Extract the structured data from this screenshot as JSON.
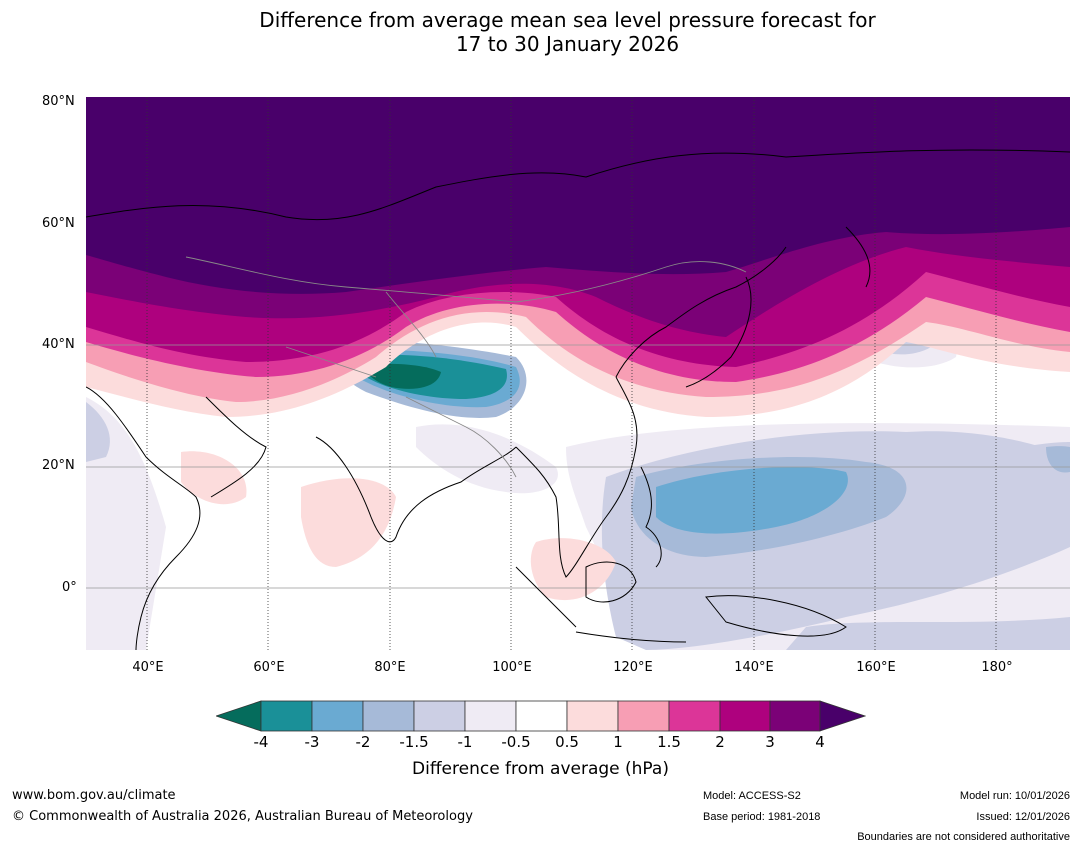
{
  "title": {
    "line1": "Difference from average mean sea level pressure forecast for",
    "line2": "17 to 30 January 2026"
  },
  "axes": {
    "lat_labels": [
      "80°N",
      "60°N",
      "40°N",
      "20°N",
      "0°"
    ],
    "lon_labels": [
      "40°E",
      "60°E",
      "80°E",
      "100°E",
      "120°E",
      "140°E",
      "160°E",
      "180°"
    ]
  },
  "colorbar": {
    "label": "Difference from average (hPa)",
    "ticks": [
      "-4",
      "-3",
      "-2",
      "-1.5",
      "-1",
      "-0.5",
      "0.5",
      "1",
      "1.5",
      "2",
      "3",
      "4"
    ],
    "colors": {
      "lt_-4": "#056c5c",
      "-4_-3": "#1a9098",
      "-3_-2": "#6aaad2",
      "-2_-1.5": "#a6bad8",
      "-1.5_-1": "#cccfe4",
      "-1_-0.5": "#efebf4",
      "-0.5_0.5": "#ffffff",
      "0.5_1": "#fcdcdc",
      "1_1.5": "#f79eb4",
      "1.5_2": "#dc3598",
      "2_3": "#ae017e",
      "3_4": "#7b0177",
      "gt_4": "#49006a"
    }
  },
  "footer": {
    "website": "www.bom.gov.au/climate",
    "copyright": "© Commonwealth of Australia 2026, Australian Bureau of Meteorology",
    "model": "Model: ACCESS-S2",
    "base_period": "Base period: 1981-2018",
    "model_run": "Model run: 10/01/2026",
    "issued": "Issued: 12/01/2026",
    "disclaimer": "Boundaries are not considered authoritative"
  }
}
